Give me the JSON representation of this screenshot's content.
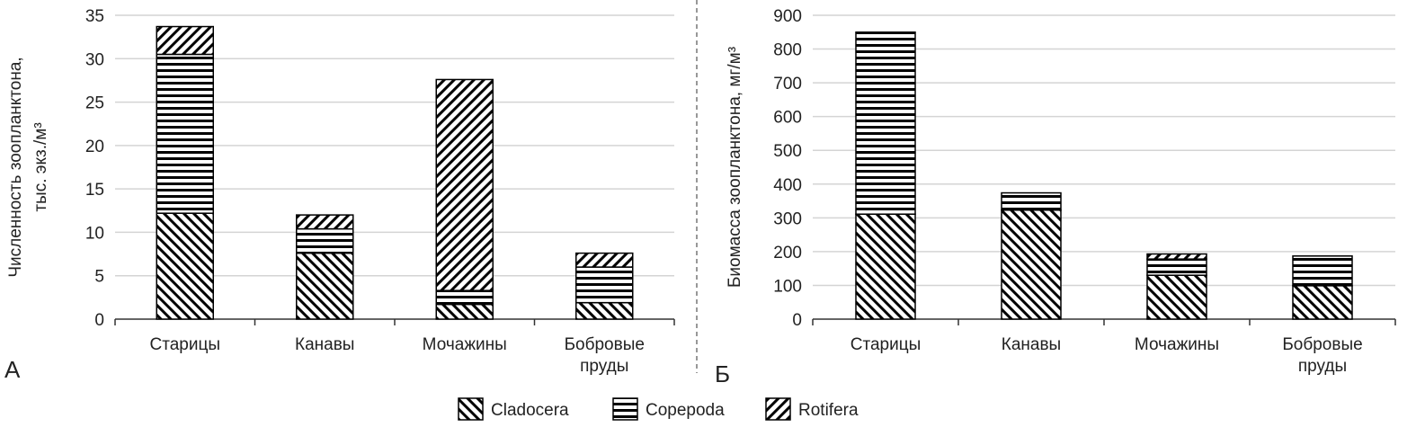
{
  "chart_data": [
    {
      "type": "bar",
      "stacked": true,
      "panel_label": "А",
      "ylabel_lines": [
        "Численность зоопланктона,",
        "тыс. экз./м³"
      ],
      "categories": [
        "Старицы",
        "Канавы",
        "Мочажины",
        "Бобровые пруды"
      ],
      "ylim": [
        0,
        35
      ],
      "yticks": [
        0,
        5,
        10,
        15,
        20,
        25,
        30,
        35
      ],
      "grid": true,
      "series": [
        {
          "name": "Cladocera",
          "values": [
            12.2,
            7.6,
            1.7,
            1.9
          ]
        },
        {
          "name": "Copepoda",
          "values": [
            18.3,
            2.8,
            1.6,
            4.1
          ]
        },
        {
          "name": "Rotifera",
          "values": [
            3.2,
            1.6,
            24.3,
            1.6
          ]
        }
      ]
    },
    {
      "type": "bar",
      "stacked": true,
      "panel_label": "Б",
      "ylabel_lines": [
        "Биомасса зоопланктона, мг/м³"
      ],
      "categories": [
        "Старицы",
        "Канавы",
        "Мочажины",
        "Бобровые пруды"
      ],
      "ylim": [
        0,
        900
      ],
      "yticks": [
        0,
        100,
        200,
        300,
        400,
        500,
        600,
        700,
        800,
        900
      ],
      "grid": true,
      "series": [
        {
          "name": "Cladocera",
          "values": [
            311,
            323,
            130,
            99
          ]
        },
        {
          "name": "Copepoda",
          "values": [
            539,
            51,
            48,
            88
          ]
        },
        {
          "name": "Rotifera",
          "values": [
            0,
            0,
            15,
            0
          ]
        }
      ]
    }
  ],
  "legend": {
    "placement": "bottom-center",
    "items": [
      "Cladocera",
      "Copepoda",
      "Rotifera"
    ]
  }
}
